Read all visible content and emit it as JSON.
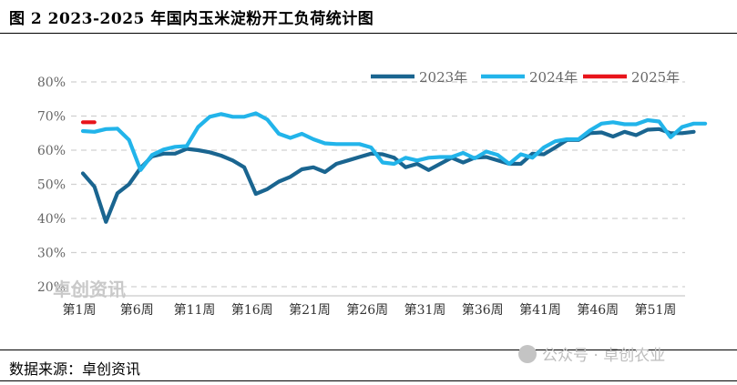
{
  "header": {
    "title": "图 2 2023-2025 年国内玉米淀粉开工负荷统计图"
  },
  "footer": {
    "source": "数据来源：卓创资讯",
    "watermark_center": "卓创资讯",
    "watermark_br": "公众号 · 卓创农业"
  },
  "colors": {
    "s2023": "#1a6590",
    "s2024": "#22b4ea",
    "s2025": "#e8141b",
    "grid": "#d0d0d0"
  },
  "chart_data": {
    "type": "line",
    "ylim": [
      20,
      80
    ],
    "yticks": [
      "20%",
      "30%",
      "40%",
      "50%",
      "60%",
      "70%",
      "80%"
    ],
    "xticks": [
      {
        "week": 1,
        "label": "第1周"
      },
      {
        "week": 6,
        "label": "第6周"
      },
      {
        "week": 11,
        "label": "第11周"
      },
      {
        "week": 16,
        "label": "第16周"
      },
      {
        "week": 21,
        "label": "第21周"
      },
      {
        "week": 26,
        "label": "第26周"
      },
      {
        "week": 31,
        "label": "第31周"
      },
      {
        "week": 36,
        "label": "第36周"
      },
      {
        "week": 41,
        "label": "第41周"
      },
      {
        "week": 46,
        "label": "第46周"
      },
      {
        "week": 51,
        "label": "第51周"
      }
    ],
    "grid": true,
    "legend_position": "top-right",
    "series": [
      {
        "name": "2023年",
        "color_key": "s2023",
        "values": [
          53.2,
          49.3,
          39.0,
          47.4,
          50.0,
          54.8,
          58.2,
          59.0,
          59.0,
          60.4,
          60.0,
          59.4,
          58.4,
          57.0,
          55.0,
          47.2,
          48.6,
          50.8,
          52.2,
          54.4,
          55.0,
          53.6,
          56.0,
          57.0,
          58.0,
          59.0,
          58.8,
          57.8,
          55.0,
          56.0,
          54.2,
          56.0,
          57.8,
          56.4,
          57.8,
          58.0,
          57.0,
          56.0,
          56.0,
          59.0,
          58.8,
          60.8,
          63.0,
          63.0,
          65.0,
          65.2,
          64.0,
          65.4,
          64.4,
          66.0,
          66.2,
          65.0,
          65.0,
          65.4
        ]
      },
      {
        "name": "2024年",
        "color_key": "s2024",
        "values": [
          65.6,
          65.4,
          66.2,
          66.3,
          63.0,
          54.2,
          58.6,
          60.2,
          61.0,
          61.2,
          66.8,
          69.8,
          70.6,
          69.8,
          69.8,
          70.8,
          69.0,
          64.8,
          63.6,
          64.8,
          63.2,
          62.0,
          61.8,
          61.8,
          61.8,
          60.8,
          56.4,
          56.0,
          57.8,
          57.0,
          57.8,
          58.0,
          58.0,
          59.2,
          57.6,
          59.6,
          58.6,
          56.0,
          58.8,
          57.8,
          60.8,
          62.6,
          63.2,
          63.2,
          65.8,
          67.8,
          68.2,
          67.6,
          67.6,
          68.8,
          68.4,
          63.8,
          66.8,
          67.8,
          67.8
        ]
      },
      {
        "name": "2025年",
        "color_key": "s2025",
        "values": [
          68.2,
          68.2
        ]
      }
    ]
  }
}
